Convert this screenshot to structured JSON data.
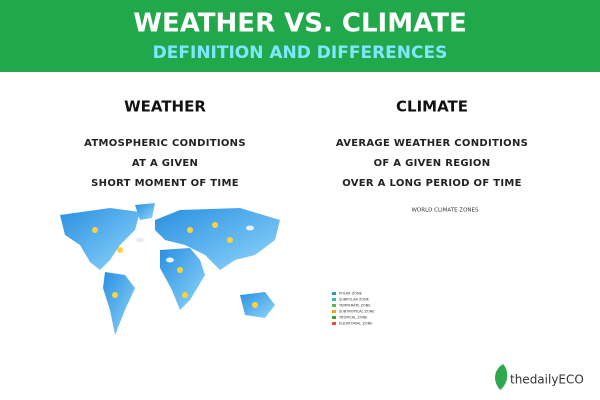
{
  "header": {
    "title": "WEATHER VS. CLIMATE",
    "subtitle": "DEFINITION AND DIFFERENCES"
  },
  "weather": {
    "heading": "WEATHER",
    "definition": [
      "ATMOSPHERIC CONDITIONS",
      "AT A GIVEN",
      "SHORT MOMENT OF TIME"
    ]
  },
  "climate": {
    "heading": "CLIMATE",
    "definition": [
      "AVERAGE WEATHER CONDITIONS",
      "OF A GIVEN REGION",
      "OVER A LONG PERIOD OF TIME"
    ],
    "map_title": "WORLD CLIMATE ZONES",
    "legend": [
      "POLAR ZONE",
      "SUBPOLAR ZONE",
      "TEMPERATE ZONE",
      "SUBTROPICAL ZONE",
      "TROPICAL ZONE",
      "EQUATORIAL ZONE"
    ]
  },
  "footer": {
    "logo": "thedailyECO"
  }
}
